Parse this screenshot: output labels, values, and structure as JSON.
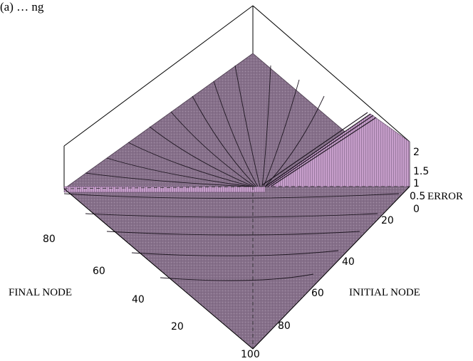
{
  "caption": "(a) … ng",
  "chart_data": {
    "type": "surface3d",
    "title": "",
    "x_axis": {
      "label": "INITIAL NODE",
      "ticks": [
        "20",
        "40",
        "60",
        "80",
        "100"
      ],
      "range": [
        0,
        100
      ]
    },
    "y_axis": {
      "label": "FINAL NODE",
      "ticks": [
        "80",
        "60",
        "40",
        "20"
      ],
      "range": [
        0,
        100
      ]
    },
    "z_axis": {
      "label": "ERROR",
      "ticks": [
        "0",
        "0.5",
        "1",
        "1.5",
        "2"
      ],
      "range": [
        0,
        2
      ]
    },
    "surface": {
      "description_values": {
        "flat_level": 0,
        "ridge_level": 2,
        "ridge_region": "initial node greater than final node near the back edge"
      }
    },
    "colors": {
      "surface": "#86708a",
      "surface_dark": "#6f5a73",
      "ridge": "#c79ecb",
      "contour": "#1f1722"
    },
    "grid": false,
    "legend": "none"
  }
}
